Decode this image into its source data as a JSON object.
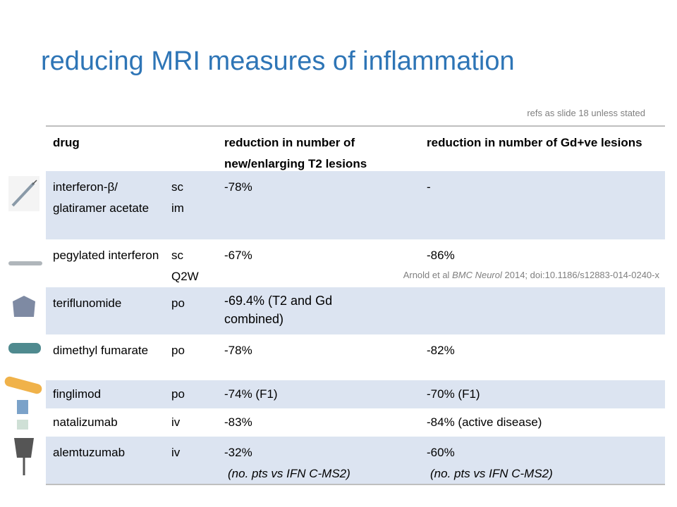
{
  "title": "reducing MRI measures of inflammation",
  "note": "refs as slide 18 unless stated",
  "table": {
    "header": {
      "drug": "drug",
      "t2": "reduction in number of new/enlarging T2 lesions",
      "gd": "reduction in number of Gd+ve lesions"
    },
    "rows": [
      {
        "drug": "interferon-β/ glatiramer acetate",
        "route": [
          "sc",
          "im"
        ],
        "t2": "-78%",
        "gd": "-"
      },
      {
        "drug": "pegylated interferon",
        "route": [
          "sc",
          "Q2W"
        ],
        "t2": "-67%",
        "gd": "-86%"
      },
      {
        "drug": "teriflunomide",
        "route": [
          "po"
        ],
        "t2": "-69.4% (T2 and Gd combined)"
      },
      {
        "drug": "dimethyl fumarate",
        "route": [
          "po"
        ],
        "t2": "-78%",
        "gd": "-82%"
      },
      {
        "drug": "finglimod",
        "route": [
          "po"
        ],
        "t2": "-74% (F1)",
        "gd": "-70% (F1)"
      },
      {
        "drug": "natalizumab",
        "route": [
          "iv"
        ],
        "t2": "-83%",
        "gd": "-84% (active disease)"
      },
      {
        "drug": "alemtuzumab",
        "route": [
          "iv"
        ],
        "t2": "-32%",
        "t2_note": "(no. pts vs IFN C-MS2)",
        "gd": "-60%",
        "gd_note": "(no. pts vs IFN C-MS2)"
      }
    ]
  },
  "citation": {
    "authors": "Arnold et al",
    "journal": "BMC Neurol",
    "details": "2014; doi:10.1186/s12883-014-0240-x"
  }
}
